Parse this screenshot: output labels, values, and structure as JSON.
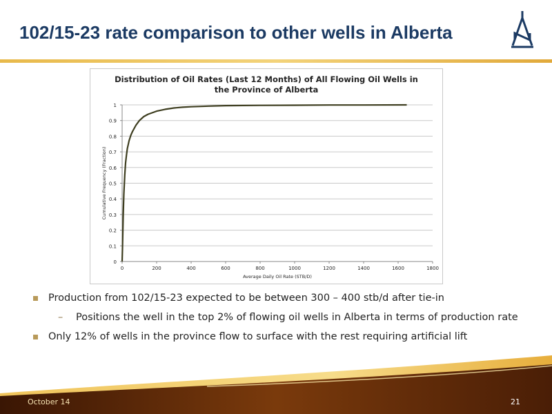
{
  "slide": {
    "title": "102/15-23 rate comparison to other wells in Alberta",
    "footer_date": "October 14",
    "page_number": "21"
  },
  "bullets": [
    {
      "text": "Production from 102/15-23 expected to be between 300 – 400 stb/d after tie-in",
      "sub": [
        "Positions the well in the top 2% of flowing oil wells in Alberta in terms of production rate"
      ]
    },
    {
      "text": "Only 12% of wells in the province flow to surface with the rest requiring artificial lift",
      "sub": []
    }
  ],
  "colors": {
    "title": "#1b3a63",
    "accent_gold": "#e8b94a",
    "curve": "#3d3d1f",
    "swoosh_dark": "#5a2a0a"
  },
  "icons": {
    "logo": "derrick-logo-icon"
  },
  "chart_data": {
    "type": "line",
    "title": "Distribution of Oil Rates (Last 12 Months) of All Flowing Oil Wells in the Province of Alberta",
    "title_lines": [
      "Distribution of Oil Rates (Last 12 Months) of All Flowing Oil Wells in",
      "the Province of Alberta"
    ],
    "xlabel": "Average Daily Oil Rate (STB/D)",
    "ylabel": "Cumulative Frequency (Fraction)",
    "xlim": [
      0,
      1800
    ],
    "ylim": [
      0,
      1
    ],
    "x_ticks": [
      0,
      200,
      400,
      600,
      800,
      1000,
      1200,
      1400,
      1600,
      1800
    ],
    "y_ticks": [
      0,
      0.1,
      0.2,
      0.3,
      0.4,
      0.5,
      0.6,
      0.7,
      0.8,
      0.9,
      1
    ],
    "x_tick_labels": [
      "0",
      "200",
      "400",
      "600",
      "800",
      "1000",
      "1200",
      "1400",
      "1600",
      "1800"
    ],
    "y_tick_labels": [
      "0",
      "0.1",
      "0.2",
      "0.3",
      "0.4",
      "0.5",
      "0.6",
      "0.7",
      "0.8",
      "0.9",
      "1"
    ],
    "grid": true,
    "series": [
      {
        "x": [
          0,
          2,
          4,
          6,
          8,
          10,
          15,
          20,
          25,
          30,
          40,
          50,
          60,
          80,
          100,
          125,
          150,
          200,
          250,
          300,
          350,
          400,
          500,
          600,
          800,
          1000,
          1200,
          1400,
          1650
        ],
        "y": [
          0,
          0.08,
          0.18,
          0.28,
          0.36,
          0.43,
          0.55,
          0.63,
          0.68,
          0.72,
          0.77,
          0.805,
          0.83,
          0.87,
          0.9,
          0.925,
          0.94,
          0.96,
          0.972,
          0.98,
          0.985,
          0.988,
          0.992,
          0.995,
          0.997,
          0.998,
          0.999,
          0.999,
          1.0
        ]
      }
    ]
  }
}
